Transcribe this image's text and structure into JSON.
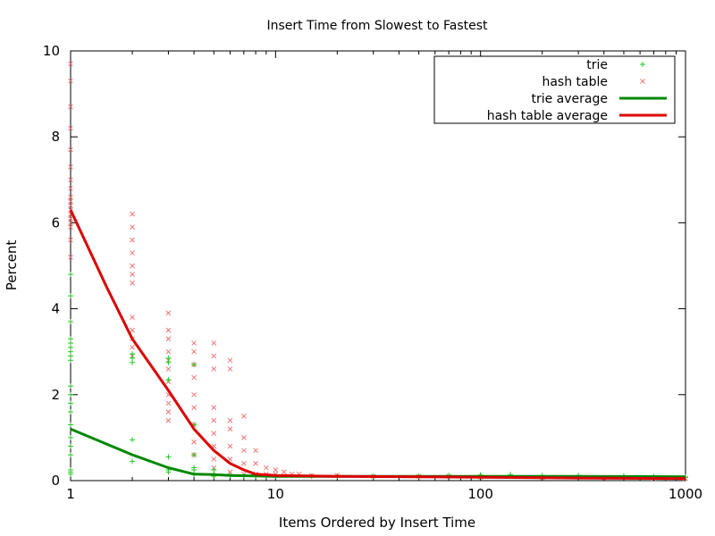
{
  "chart_data": {
    "type": "scatter",
    "title": "Insert Time from Slowest to Fastest",
    "xlabel": "Items Ordered by Insert Time",
    "ylabel": "Percent",
    "xscale": "log",
    "xlim": [
      1,
      1000
    ],
    "ylim": [
      0,
      10
    ],
    "xticks": [
      1,
      10,
      100,
      1000
    ],
    "xtick_labels": [
      "1",
      "10",
      "100",
      "1000"
    ],
    "yticks": [
      0,
      2,
      4,
      6,
      8,
      10
    ],
    "ytick_labels": [
      "0",
      "2",
      "4",
      "6",
      "8",
      "10"
    ],
    "grid": false,
    "legend_position": "top-right",
    "series": [
      {
        "name": "trie",
        "kind": "scatter",
        "marker": "plus",
        "color": "#22cc22",
        "points": [
          [
            1,
            0.15
          ],
          [
            1,
            0.2
          ],
          [
            1,
            0.25
          ],
          [
            1,
            0.6
          ],
          [
            1,
            0.8
          ],
          [
            1,
            1.0
          ],
          [
            1,
            1.3
          ],
          [
            1,
            1.6
          ],
          [
            1,
            1.8
          ],
          [
            1,
            2.0
          ],
          [
            1,
            2.2
          ],
          [
            1,
            2.8
          ],
          [
            1,
            2.9
          ],
          [
            1,
            3.0
          ],
          [
            1,
            3.1
          ],
          [
            1,
            3.2
          ],
          [
            1,
            3.3
          ],
          [
            1,
            3.7
          ],
          [
            1,
            4.3
          ],
          [
            1,
            4.8
          ],
          [
            2,
            0.45
          ],
          [
            2,
            0.95
          ],
          [
            2,
            2.75
          ],
          [
            2,
            2.85
          ],
          [
            2,
            2.95
          ],
          [
            3,
            0.2
          ],
          [
            3,
            0.25
          ],
          [
            3,
            0.55
          ],
          [
            3,
            2.35
          ],
          [
            3,
            2.75
          ],
          [
            3,
            2.85
          ],
          [
            4,
            0.15
          ],
          [
            4,
            0.25
          ],
          [
            4,
            0.3
          ],
          [
            4,
            0.6
          ],
          [
            4,
            1.3
          ],
          [
            4,
            2.7
          ],
          [
            5,
            0.1
          ],
          [
            5,
            0.15
          ],
          [
            5,
            0.25
          ],
          [
            6,
            0.12
          ],
          [
            7,
            0.1
          ],
          [
            8,
            0.1
          ],
          [
            9,
            0.1
          ],
          [
            10,
            0.1
          ],
          [
            15,
            0.1
          ],
          [
            20,
            0.1
          ],
          [
            30,
            0.1
          ],
          [
            50,
            0.1
          ],
          [
            70,
            0.12
          ],
          [
            100,
            0.13
          ],
          [
            140,
            0.14
          ],
          [
            200,
            0.12
          ],
          [
            300,
            0.12
          ],
          [
            500,
            0.11
          ],
          [
            700,
            0.1
          ],
          [
            1000,
            0.08
          ]
        ]
      },
      {
        "name": "hash table",
        "kind": "scatter",
        "marker": "cross",
        "color": "#ee7777",
        "points": [
          [
            1,
            5.2
          ],
          [
            1,
            5.6
          ],
          [
            1,
            5.9
          ],
          [
            1,
            6.0
          ],
          [
            1,
            6.1
          ],
          [
            1,
            6.2
          ],
          [
            1,
            6.3
          ],
          [
            1,
            6.4
          ],
          [
            1,
            6.5
          ],
          [
            1,
            6.6
          ],
          [
            1,
            6.8
          ],
          [
            1,
            7.0
          ],
          [
            1,
            7.3
          ],
          [
            1,
            7.7
          ],
          [
            1,
            8.2
          ],
          [
            1,
            8.7
          ],
          [
            1,
            9.3
          ],
          [
            1,
            9.7
          ],
          [
            2,
            2.9
          ],
          [
            2,
            3.1
          ],
          [
            2,
            3.3
          ],
          [
            2,
            3.5
          ],
          [
            2,
            3.8
          ],
          [
            2,
            4.6
          ],
          [
            2,
            4.8
          ],
          [
            2,
            5.0
          ],
          [
            2,
            5.3
          ],
          [
            2,
            5.6
          ],
          [
            2,
            5.9
          ],
          [
            2,
            6.2
          ],
          [
            3,
            1.4
          ],
          [
            3,
            1.6
          ],
          [
            3,
            1.8
          ],
          [
            3,
            2.0
          ],
          [
            3,
            2.3
          ],
          [
            3,
            2.6
          ],
          [
            3,
            2.8
          ],
          [
            3,
            3.0
          ],
          [
            3,
            3.3
          ],
          [
            3,
            3.5
          ],
          [
            3,
            3.9
          ],
          [
            4,
            0.6
          ],
          [
            4,
            0.9
          ],
          [
            4,
            1.3
          ],
          [
            4,
            1.7
          ],
          [
            4,
            2.0
          ],
          [
            4,
            2.4
          ],
          [
            4,
            2.7
          ],
          [
            4,
            3.0
          ],
          [
            4,
            3.2
          ],
          [
            5,
            0.3
          ],
          [
            5,
            0.5
          ],
          [
            5,
            0.8
          ],
          [
            5,
            1.1
          ],
          [
            5,
            1.4
          ],
          [
            5,
            1.7
          ],
          [
            5,
            2.6
          ],
          [
            5,
            2.9
          ],
          [
            5,
            3.2
          ],
          [
            6,
            0.2
          ],
          [
            6,
            0.5
          ],
          [
            6,
            0.8
          ],
          [
            6,
            1.2
          ],
          [
            6,
            1.4
          ],
          [
            6,
            2.6
          ],
          [
            6,
            2.8
          ],
          [
            7,
            0.15
          ],
          [
            7,
            0.4
          ],
          [
            7,
            0.7
          ],
          [
            7,
            1.0
          ],
          [
            7,
            1.5
          ],
          [
            8,
            0.15
          ],
          [
            8,
            0.4
          ],
          [
            8,
            0.7
          ],
          [
            9,
            0.15
          ],
          [
            9,
            0.3
          ],
          [
            10,
            0.15
          ],
          [
            10,
            0.25
          ],
          [
            11,
            0.2
          ],
          [
            12,
            0.15
          ],
          [
            13,
            0.15
          ],
          [
            15,
            0.12
          ],
          [
            20,
            0.12
          ],
          [
            30,
            0.1
          ],
          [
            50,
            0.1
          ],
          [
            70,
            0.1
          ],
          [
            100,
            0.08
          ],
          [
            200,
            0.07
          ],
          [
            400,
            0.06
          ],
          [
            700,
            0.05
          ],
          [
            1000,
            0.05
          ]
        ]
      },
      {
        "name": "trie average",
        "kind": "line",
        "color": "#008800",
        "points": [
          [
            1,
            1.2
          ],
          [
            1.5,
            0.85
          ],
          [
            2,
            0.6
          ],
          [
            3,
            0.3
          ],
          [
            4,
            0.15
          ],
          [
            5,
            0.14
          ],
          [
            6,
            0.12
          ],
          [
            8,
            0.11
          ],
          [
            10,
            0.1
          ],
          [
            20,
            0.1
          ],
          [
            50,
            0.1
          ],
          [
            100,
            0.1
          ],
          [
            300,
            0.1
          ],
          [
            1000,
            0.09
          ]
        ]
      },
      {
        "name": "hash table average",
        "kind": "line",
        "color": "#dd0000",
        "points": [
          [
            1,
            6.3
          ],
          [
            1.5,
            4.5
          ],
          [
            2,
            3.3
          ],
          [
            3,
            2.1
          ],
          [
            4,
            1.2
          ],
          [
            5,
            0.7
          ],
          [
            6,
            0.4
          ],
          [
            7,
            0.25
          ],
          [
            8,
            0.15
          ],
          [
            10,
            0.12
          ],
          [
            20,
            0.1
          ],
          [
            50,
            0.09
          ],
          [
            100,
            0.08
          ],
          [
            300,
            0.06
          ],
          [
            1000,
            0.05
          ]
        ]
      }
    ]
  }
}
